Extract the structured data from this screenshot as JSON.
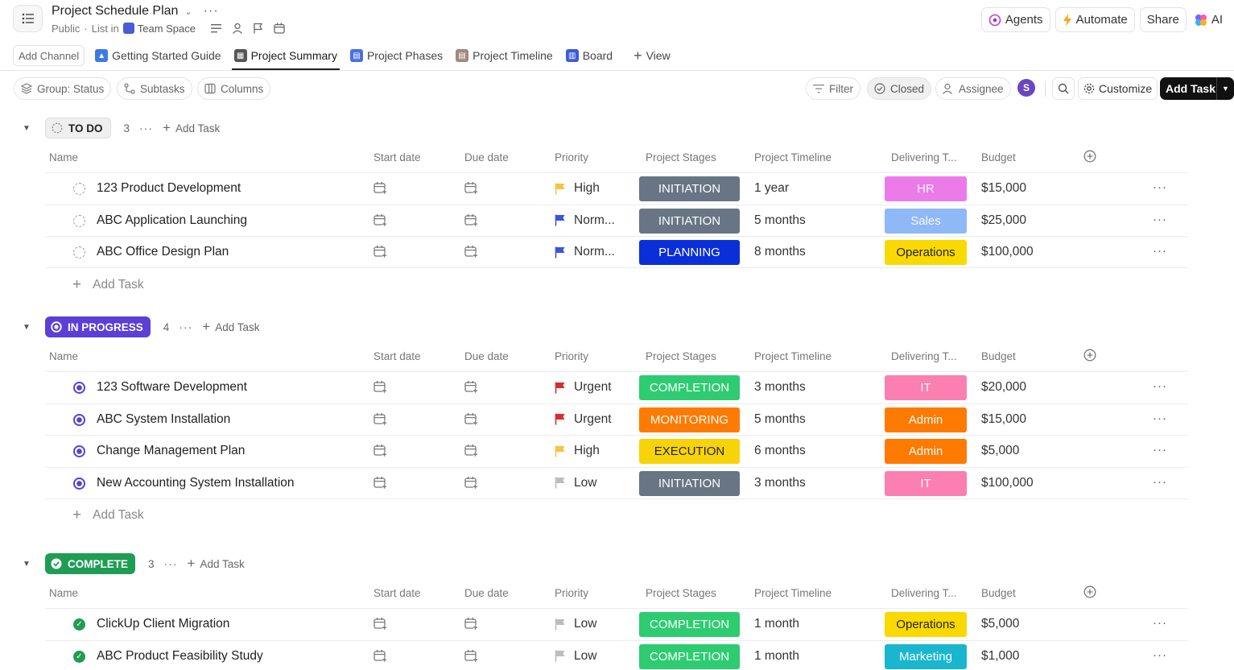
{
  "header": {
    "title": "Project Schedule Plan",
    "visibility": "Public",
    "list_in": "List in",
    "space": "Team Space",
    "agents": "Agents",
    "automate": "Automate",
    "share": "Share",
    "ai": "AI"
  },
  "tabs": {
    "add_channel": "Add Channel",
    "items": [
      "Getting Started Guide",
      "Project Summary",
      "Project Phases",
      "Project Timeline",
      "Board"
    ],
    "view": "View"
  },
  "toolbar": {
    "group": "Group: Status",
    "subtasks": "Subtasks",
    "columns": "Columns",
    "filter": "Filter",
    "closed": "Closed",
    "assignee": "Assignee",
    "avatar": "S",
    "customize": "Customize",
    "add_task": "Add Task"
  },
  "columns": [
    "Name",
    "Start date",
    "Due date",
    "Priority",
    "Project Stages",
    "Project Timeline",
    "Delivering T...",
    "Budget"
  ],
  "add_task_label": "Add Task",
  "colors": {
    "INITIATION": "#687584",
    "PLANNING": "#0a2fd9",
    "COMPLETION": "#2ecc71",
    "MONITORING": "#ff7a00",
    "EXECUTION": "#f7d30a",
    "HR": "#ec7bea",
    "Sales": "#8fb8f7",
    "Operations": "#f9d900",
    "IT": "#fb7fb0",
    "Admin": "#ff7a00",
    "Marketing": "#1ab6d0"
  },
  "groups": [
    {
      "status": "TO DO",
      "count": "3",
      "kind": "todo",
      "tasks": [
        {
          "name": "123 Product Development",
          "priority": "High",
          "stage": "INITIATION",
          "timeline": "1 year",
          "dept": "HR",
          "budget": "$15,000"
        },
        {
          "name": "ABC Application Launching",
          "priority": "Norm...",
          "stage": "INITIATION",
          "timeline": "5 months",
          "dept": "Sales",
          "budget": "$25,000"
        },
        {
          "name": "ABC Office Design Plan",
          "priority": "Norm...",
          "stage": "PLANNING",
          "timeline": "8 months",
          "dept": "Operations",
          "budget": "$100,000"
        }
      ]
    },
    {
      "status": "IN PROGRESS",
      "count": "4",
      "kind": "prog",
      "tasks": [
        {
          "name": "123 Software Development",
          "priority": "Urgent",
          "stage": "COMPLETION",
          "timeline": "3 months",
          "dept": "IT",
          "budget": "$20,000"
        },
        {
          "name": "ABC System Installation",
          "priority": "Urgent",
          "stage": "MONITORING",
          "timeline": "5 months",
          "dept": "Admin",
          "budget": "$15,000"
        },
        {
          "name": "Change Management Plan",
          "priority": "High",
          "stage": "EXECUTION",
          "timeline": "6 months",
          "dept": "Admin",
          "budget": "$5,000"
        },
        {
          "name": "New Accounting System Installation",
          "priority": "Low",
          "stage": "INITIATION",
          "timeline": "3 months",
          "dept": "IT",
          "budget": "$100,000"
        }
      ]
    },
    {
      "status": "COMPLETE",
      "count": "3",
      "kind": "done",
      "tasks": [
        {
          "name": "ClickUp Client Migration",
          "priority": "Low",
          "stage": "COMPLETION",
          "timeline": "1 month",
          "dept": "Operations",
          "budget": "$5,000"
        },
        {
          "name": "ABC Product Feasibility Study",
          "priority": "Low",
          "stage": "COMPLETION",
          "timeline": "1 month",
          "dept": "Marketing",
          "budget": "$1,000"
        }
      ]
    }
  ]
}
